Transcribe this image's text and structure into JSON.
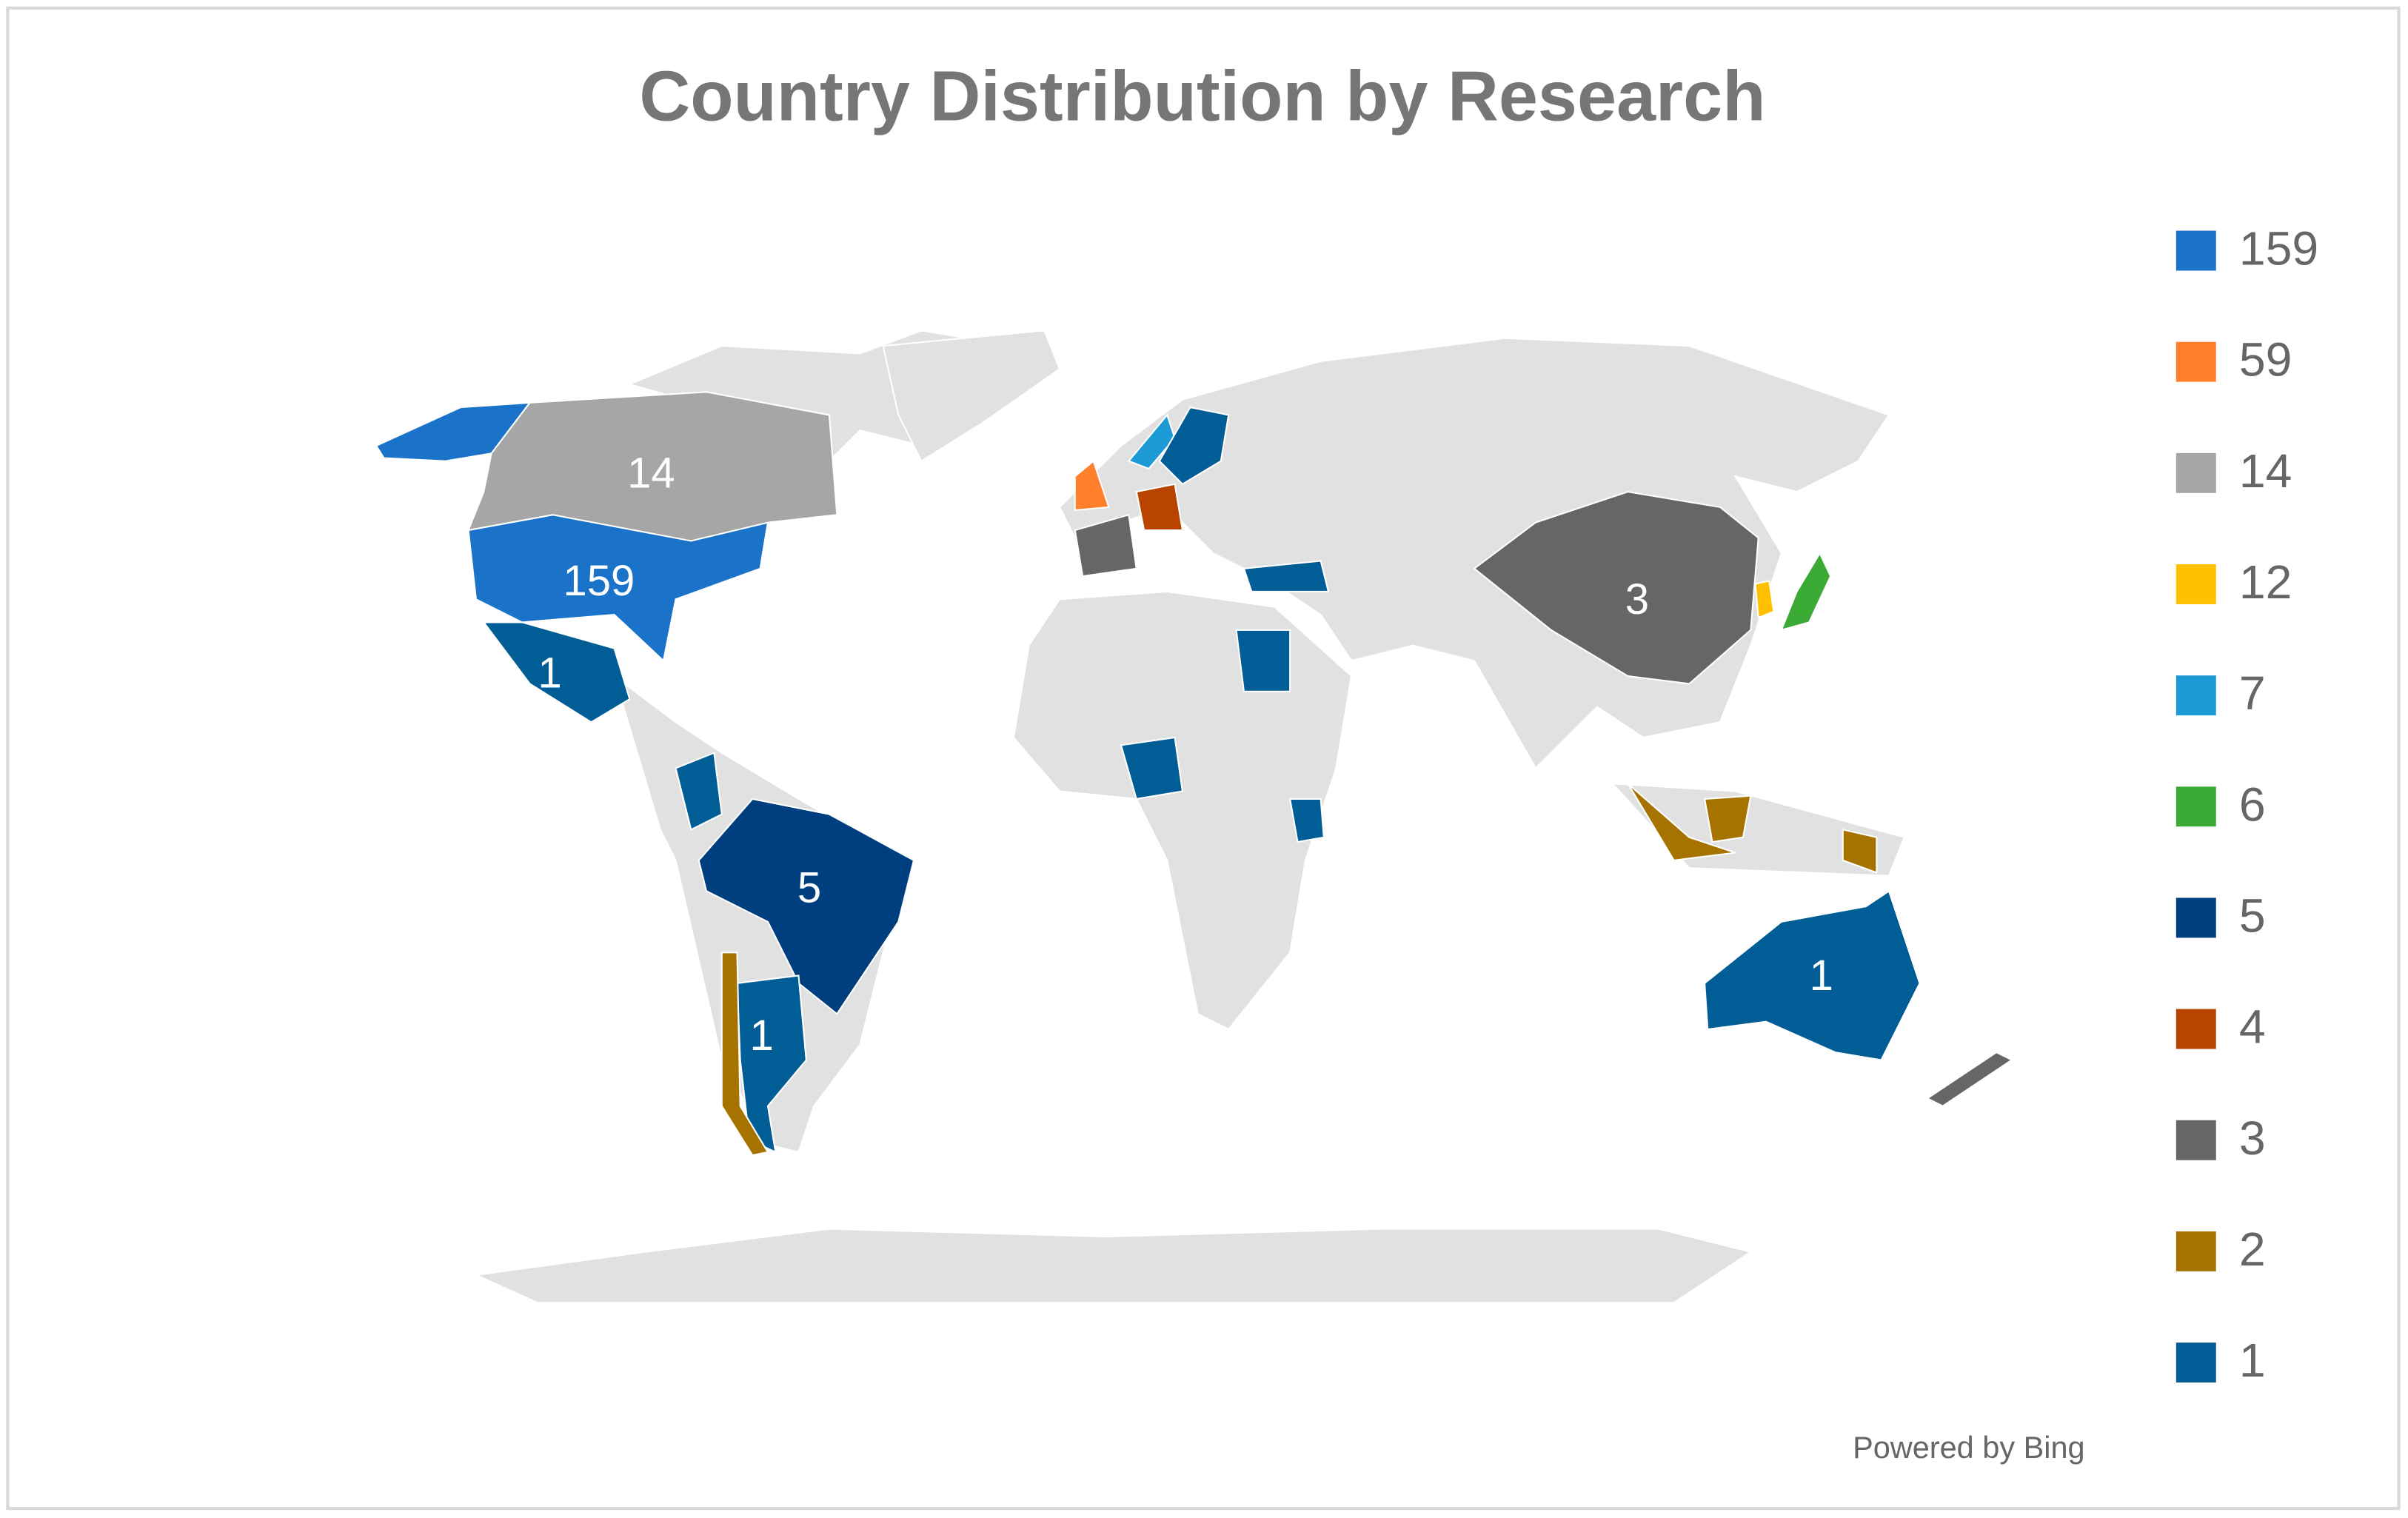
{
  "chart_data": {
    "type": "map",
    "title": "Country Distribution by Research",
    "legend": [
      {
        "value": 159,
        "color": "#1a73c9"
      },
      {
        "value": 59,
        "color": "#ff7f2a"
      },
      {
        "value": 14,
        "color": "#a6a6a6"
      },
      {
        "value": 12,
        "color": "#ffc000"
      },
      {
        "value": 7,
        "color": "#1c9ad6"
      },
      {
        "value": 6,
        "color": "#3aaa35"
      },
      {
        "value": 5,
        "color": "#003f7f"
      },
      {
        "value": 4,
        "color": "#b84400"
      },
      {
        "value": 3,
        "color": "#666666"
      },
      {
        "value": 2,
        "color": "#a67300"
      },
      {
        "value": 1,
        "color": "#005d96"
      }
    ],
    "regions": [
      159,
      14,
      1,
      5,
      3,
      1,
      1,
      59,
      12,
      7,
      6,
      4,
      3,
      2,
      2,
      1,
      1,
      1,
      1,
      1,
      3,
      1
    ],
    "source": "Powered by Bing"
  }
}
